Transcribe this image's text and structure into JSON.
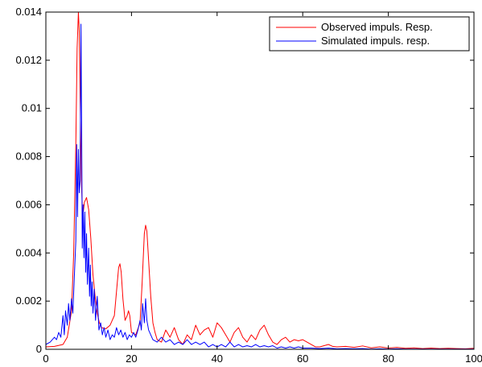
{
  "chart_data": {
    "type": "line",
    "title": "",
    "xlabel": "",
    "ylabel": "",
    "xlim": [
      0,
      100
    ],
    "ylim": [
      0,
      0.014
    ],
    "xticks": [
      0,
      20,
      40,
      60,
      80,
      100
    ],
    "yticks": [
      0,
      0.002,
      0.004,
      0.006,
      0.008,
      0.01,
      0.012,
      0.014
    ],
    "xtick_labels": [
      "0",
      "20",
      "40",
      "60",
      "80",
      "100"
    ],
    "ytick_labels": [
      "0",
      "0.002",
      "0.004",
      "0.006",
      "0.008",
      "0.01",
      "0.012",
      "0.014"
    ],
    "grid": false,
    "legend_position": "top-right",
    "series": [
      {
        "name": "Observed impuls. Resp.",
        "color": "#ff0000",
        "x": [
          0,
          2,
          4,
          5,
          6,
          6.5,
          7,
          7.3,
          7.6,
          7.8,
          8,
          8.3,
          8.6,
          9,
          9.5,
          10,
          10.5,
          11,
          11.5,
          12,
          12.5,
          13,
          14,
          15,
          16,
          16.5,
          17,
          17.3,
          17.6,
          18,
          18.5,
          19,
          19.3,
          19.6,
          20,
          21,
          22,
          22.5,
          23,
          23.3,
          23.6,
          24,
          24.5,
          25,
          25.5,
          26,
          27,
          28,
          29,
          30,
          31,
          32,
          33,
          34,
          35,
          36,
          37,
          38,
          39,
          40,
          41,
          42,
          43,
          44,
          45,
          46,
          47,
          48,
          49,
          50,
          51,
          52,
          53,
          54,
          55,
          56,
          57,
          58,
          59,
          60,
          61,
          62,
          63,
          64,
          65,
          66,
          67,
          68,
          70,
          72,
          74,
          76,
          78,
          80,
          82,
          84,
          86,
          88,
          90,
          92,
          94,
          96,
          98,
          100
        ],
        "y": [
          0.0001,
          0.00012,
          0.0002,
          0.0005,
          0.0016,
          0.004,
          0.0085,
          0.0125,
          0.014,
          0.0132,
          0.0105,
          0.007,
          0.0055,
          0.0061,
          0.0063,
          0.0058,
          0.0046,
          0.0031,
          0.0022,
          0.0015,
          0.0011,
          0.0009,
          0.00085,
          0.001,
          0.0014,
          0.0024,
          0.0034,
          0.00355,
          0.0032,
          0.0021,
          0.0012,
          0.0014,
          0.0016,
          0.0014,
          0.0007,
          0.0006,
          0.0011,
          0.0028,
          0.0048,
          0.00515,
          0.0049,
          0.0037,
          0.0022,
          0.0011,
          0.0007,
          0.0004,
          0.0003,
          0.0008,
          0.0005,
          0.0009,
          0.0004,
          0.0002,
          0.0006,
          0.0004,
          0.001,
          0.0006,
          0.0008,
          0.0009,
          0.0005,
          0.0011,
          0.0009,
          0.0006,
          0.0003,
          0.0007,
          0.0009,
          0.0005,
          0.0003,
          0.0006,
          0.0004,
          0.0008,
          0.001,
          0.0006,
          0.0003,
          0.0002,
          0.0004,
          0.0005,
          0.0003,
          0.0004,
          0.00035,
          0.0004,
          0.0003,
          0.0002,
          0.0001,
          0.0001,
          0.00015,
          0.0002,
          0.00012,
          0.0001,
          0.00012,
          8e-05,
          0.00014,
          6e-05,
          0.0001,
          5e-05,
          8e-05,
          4e-05,
          6e-05,
          3e-05,
          5e-05,
          3e-05,
          4e-05,
          3e-05,
          2e-05,
          4e-05
        ]
      },
      {
        "name": "Simulated impuls. resp.",
        "color": "#0000ff",
        "x": [
          0,
          1,
          2,
          2.5,
          3,
          3.5,
          4,
          4.3,
          4.6,
          5,
          5.3,
          5.6,
          6,
          6.3,
          6.6,
          7,
          7.2,
          7.4,
          7.6,
          7.8,
          8,
          8.1,
          8.2,
          8.35,
          8.5,
          8.7,
          8.9,
          9.1,
          9.3,
          9.5,
          9.7,
          10,
          10.2,
          10.4,
          10.6,
          10.8,
          11,
          11.3,
          11.6,
          12,
          12.4,
          12.8,
          13.2,
          13.6,
          14,
          14.5,
          15,
          15.5,
          16,
          16.5,
          17,
          17.5,
          18,
          18.5,
          19,
          19.5,
          20,
          20.5,
          21,
          21.5,
          22,
          22.3,
          22.6,
          23,
          23.3,
          23.6,
          24,
          24.5,
          25,
          26,
          27,
          28,
          29,
          30,
          31,
          32,
          33,
          34,
          35,
          36,
          37,
          38,
          39,
          40,
          41,
          42,
          43,
          44,
          45,
          46,
          47,
          48,
          49,
          50,
          51,
          52,
          53,
          54,
          55,
          56,
          57,
          58,
          59,
          60,
          62,
          64,
          66,
          68,
          70,
          72,
          74,
          76,
          78,
          80,
          82,
          84,
          86,
          88,
          90,
          92,
          94,
          96,
          98,
          100
        ],
        "y": [
          0.0002,
          0.0003,
          0.0005,
          0.0004,
          0.0007,
          0.0005,
          0.0014,
          0.0006,
          0.0016,
          0.001,
          0.0019,
          0.0012,
          0.0021,
          0.0015,
          0.0028,
          0.0045,
          0.0085,
          0.0055,
          0.0083,
          0.0065,
          0.007,
          0.0105,
          0.0135,
          0.0095,
          0.0042,
          0.006,
          0.0038,
          0.0057,
          0.0032,
          0.0048,
          0.0027,
          0.0042,
          0.0022,
          0.0035,
          0.0018,
          0.0028,
          0.0015,
          0.0025,
          0.0012,
          0.0022,
          0.0008,
          0.0011,
          0.0006,
          0.0009,
          0.0005,
          0.0008,
          0.0004,
          0.0006,
          0.0005,
          0.0009,
          0.0006,
          0.0008,
          0.0005,
          0.0007,
          0.0004,
          0.0006,
          0.0005,
          0.0007,
          0.0005,
          0.0008,
          0.0012,
          0.0008,
          0.0019,
          0.0011,
          0.0021,
          0.0012,
          0.0008,
          0.0006,
          0.0004,
          0.0003,
          0.0005,
          0.0003,
          0.0004,
          0.0002,
          0.0003,
          0.0002,
          0.0004,
          0.0002,
          0.0003,
          0.0002,
          0.0003,
          0.0001,
          0.0002,
          0.0001,
          0.0002,
          0.0001,
          0.0003,
          0.0001,
          0.0002,
          0.0001,
          0.00015,
          0.0001,
          0.0002,
          0.0001,
          0.00015,
          0.0001,
          0.00015,
          5e-05,
          0.0001,
          5e-05,
          0.0001,
          5e-05,
          0.0001,
          5e-05,
          5e-05,
          3e-05,
          5e-05,
          2e-05,
          3e-05,
          2e-05,
          3e-05,
          1e-05,
          2e-05,
          1e-05,
          2e-05,
          1e-05,
          1e-05,
          1e-05,
          1e-05,
          1e-05,
          1e-05,
          1e-05,
          1e-05,
          1e-05
        ]
      }
    ]
  }
}
